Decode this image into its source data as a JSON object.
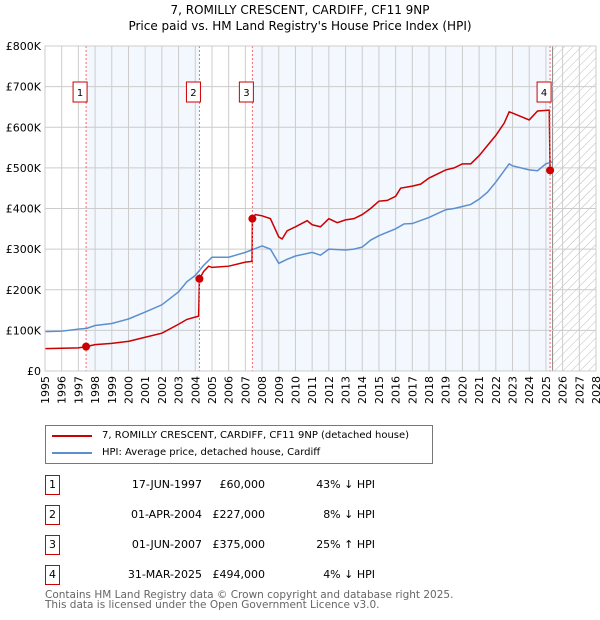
{
  "chart_data": {
    "type": "line",
    "title": "7, ROMILLY CRESCENT, CARDIFF, CF11 9NP",
    "subtitle": "Price paid vs. HM Land Registry's House Price Index (HPI)",
    "xlim": [
      1995,
      2028
    ],
    "ylim": [
      0,
      800000
    ],
    "yticks": [
      {
        "v": 0,
        "label": "£0"
      },
      {
        "v": 100000,
        "label": "£100K"
      },
      {
        "v": 200000,
        "label": "£200K"
      },
      {
        "v": 300000,
        "label": "£300K"
      },
      {
        "v": 400000,
        "label": "£400K"
      },
      {
        "v": 500000,
        "label": "£500K"
      },
      {
        "v": 600000,
        "label": "£600K"
      },
      {
        "v": 700000,
        "label": "£700K"
      },
      {
        "v": 800000,
        "label": "£800K"
      }
    ],
    "xticks": [
      "1995",
      "1996",
      "1997",
      "1998",
      "1999",
      "2000",
      "2001",
      "2002",
      "2003",
      "2004",
      "2005",
      "2006",
      "2007",
      "2008",
      "2009",
      "2010",
      "2011",
      "2012",
      "2013",
      "2014",
      "2015",
      "2016",
      "2017",
      "2018",
      "2019",
      "2020",
      "2021",
      "2022",
      "2023",
      "2024",
      "2025",
      "2026",
      "2027",
      "2028"
    ],
    "grid": true,
    "series": [
      {
        "name": "7, ROMILLY CRESCENT, CARDIFF, CF11 9NP (detached house)",
        "color": "#cc0000",
        "x": [
          1995,
          1996,
          1997,
          1997.46,
          1998,
          1999,
          2000,
          2001,
          2002,
          2003,
          2003.5,
          2004.2,
          2004.25,
          2004.5,
          2004.8,
          2005,
          2006,
          2007,
          2007.4,
          2007.42,
          2007.6,
          2008,
          2008.5,
          2009,
          2009.2,
          2009.5,
          2010,
          2010.7,
          2011,
          2011.5,
          2012,
          2012.5,
          2013,
          2013.5,
          2014,
          2014.5,
          2015,
          2015.5,
          2016,
          2016.3,
          2017,
          2017.5,
          2018,
          2019,
          2019.5,
          2020,
          2020.5,
          2021,
          2021.5,
          2022,
          2022.5,
          2022.8,
          2023,
          2024,
          2024.5,
          2025.2,
          2025.25
        ],
        "y": [
          55000,
          56000,
          57000,
          60000,
          65000,
          68000,
          73000,
          83000,
          93000,
          115000,
          127000,
          135000,
          227000,
          245000,
          258000,
          255000,
          258000,
          268000,
          270000,
          375000,
          385000,
          382000,
          375000,
          330000,
          325000,
          345000,
          355000,
          370000,
          360000,
          355000,
          375000,
          365000,
          372000,
          375000,
          385000,
          400000,
          418000,
          420000,
          430000,
          450000,
          455000,
          460000,
          475000,
          495000,
          500000,
          510000,
          510000,
          530000,
          555000,
          580000,
          610000,
          638000,
          635000,
          618000,
          640000,
          642000,
          494000
        ]
      },
      {
        "name": "HPI: Average price, detached house, Cardiff",
        "color": "#5b8fd0",
        "x": [
          1995,
          1996,
          1997,
          1997.5,
          1998,
          1999,
          2000,
          2001,
          2002,
          2003,
          2003.5,
          2004,
          2004.5,
          2005,
          2006,
          2007,
          2007.5,
          2008,
          2008.5,
          2009,
          2009.5,
          2010,
          2011,
          2011.5,
          2012,
          2013,
          2013.5,
          2014,
          2014.5,
          2015,
          2016,
          2016.5,
          2017,
          2018,
          2019,
          2019.5,
          2020,
          2020.5,
          2021,
          2021.5,
          2022,
          2022.8,
          2023,
          2024,
          2024.5,
          2025,
          2025.4
        ],
        "y": [
          97000,
          98000,
          103000,
          105000,
          112000,
          117000,
          128000,
          145000,
          163000,
          195000,
          220000,
          235000,
          260000,
          280000,
          280000,
          292000,
          300000,
          308000,
          300000,
          265000,
          275000,
          283000,
          292000,
          285000,
          300000,
          298000,
          300000,
          305000,
          322000,
          333000,
          350000,
          362000,
          363000,
          378000,
          397000,
          400000,
          405000,
          410000,
          423000,
          440000,
          465000,
          510000,
          505000,
          495000,
          493000,
          510000,
          515000
        ]
      }
    ],
    "sales": [
      {
        "label": "1",
        "x": 1997.46,
        "y": 60000,
        "date": "17-JUN-1997",
        "price": "£60,000",
        "hpi": "43% ↓ HPI"
      },
      {
        "label": "2",
        "x": 2004.25,
        "y": 227000,
        "date": "01-APR-2004",
        "price": "£227,000",
        "hpi": "8% ↓ HPI"
      },
      {
        "label": "3",
        "x": 2007.42,
        "y": 375000,
        "date": "01-JUN-2007",
        "price": "£375,000",
        "hpi": "25% ↑ HPI"
      },
      {
        "label": "4",
        "x": 2025.25,
        "y": 494000,
        "date": "31-MAR-2025",
        "price": "£494,000",
        "hpi": "4% ↓ HPI"
      }
    ],
    "forecast_start": 2025.4,
    "legend_position": "below"
  },
  "footer": {
    "line1": "Contains HM Land Registry data © Crown copyright and database right 2025.",
    "line2": "This data is licensed under the Open Government Licence v3.0."
  }
}
